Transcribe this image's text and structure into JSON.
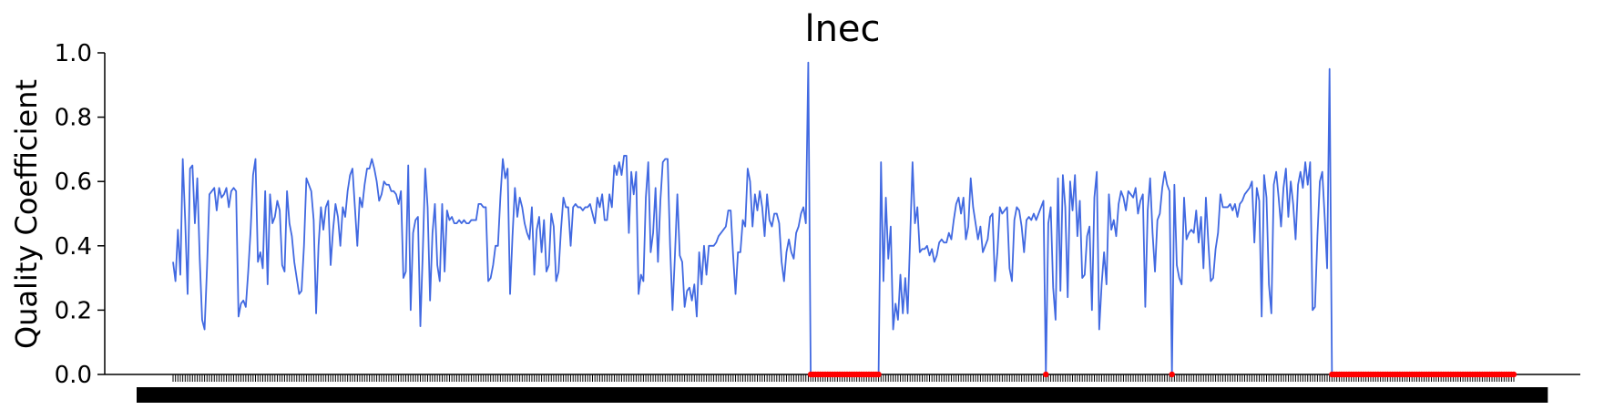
{
  "chart_data": {
    "type": "line",
    "title": "lnec",
    "xlabel": "",
    "ylabel": "Quality Coefficient",
    "ylim": [
      0,
      1.0
    ],
    "yticks": [
      "0.0",
      "0.2",
      "0.4",
      "0.6",
      "0.8",
      "1.0"
    ],
    "x_tick_labels_note": "dense overlapping date tick labels (unreadable)",
    "series": [
      {
        "color": "#4169e1",
        "values": [
          0.35,
          0.29,
          0.45,
          0.31,
          0.67,
          0.48,
          0.25,
          0.64,
          0.65,
          0.47,
          0.61,
          0.36,
          0.17,
          0.14,
          0.33,
          0.56,
          0.57,
          0.58,
          0.51,
          0.58,
          0.55,
          0.56,
          0.58,
          0.52,
          0.57,
          0.58,
          0.57,
          0.18,
          0.22,
          0.23,
          0.21,
          0.32,
          0.45,
          0.62,
          0.67,
          0.35,
          0.38,
          0.33,
          0.57,
          0.28,
          0.56,
          0.47,
          0.49,
          0.54,
          0.51,
          0.34,
          0.32,
          0.57,
          0.47,
          0.43,
          0.35,
          0.3,
          0.25,
          0.26,
          0.4,
          0.61,
          0.59,
          0.57,
          0.48,
          0.19,
          0.4,
          0.52,
          0.45,
          0.52,
          0.54,
          0.34,
          0.45,
          0.53,
          0.49,
          0.4,
          0.52,
          0.49,
          0.57,
          0.62,
          0.64,
          0.52,
          0.4,
          0.55,
          0.52,
          0.59,
          0.64,
          0.64,
          0.67,
          0.64,
          0.6,
          0.54,
          0.56,
          0.6,
          0.59,
          0.59,
          0.57,
          0.57,
          0.56,
          0.53,
          0.57,
          0.3,
          0.32,
          0.65,
          0.2,
          0.44,
          0.48,
          0.49,
          0.15,
          0.38,
          0.64,
          0.52,
          0.23,
          0.44,
          0.53,
          0.34,
          0.29,
          0.53,
          0.32,
          0.51,
          0.48,
          0.49,
          0.47,
          0.47,
          0.48,
          0.47,
          0.48,
          0.47,
          0.47,
          0.48,
          0.48,
          0.48,
          0.53,
          0.53,
          0.52,
          0.52,
          0.29,
          0.3,
          0.34,
          0.4,
          0.4,
          0.55,
          0.67,
          0.61,
          0.64,
          0.25,
          0.43,
          0.58,
          0.49,
          0.55,
          0.52,
          0.47,
          0.44,
          0.42,
          0.52,
          0.31,
          0.45,
          0.49,
          0.38,
          0.48,
          0.32,
          0.34,
          0.5,
          0.46,
          0.29,
          0.32,
          0.45,
          0.55,
          0.52,
          0.52,
          0.4,
          0.52,
          0.53,
          0.52,
          0.52,
          0.51,
          0.52,
          0.52,
          0.53,
          0.5,
          0.47,
          0.55,
          0.52,
          0.56,
          0.48,
          0.48,
          0.56,
          0.52,
          0.65,
          0.62,
          0.66,
          0.62,
          0.68,
          0.68,
          0.44,
          0.63,
          0.56,
          0.63,
          0.25,
          0.31,
          0.29,
          0.55,
          0.66,
          0.38,
          0.44,
          0.58,
          0.35,
          0.54,
          0.66,
          0.67,
          0.67,
          0.4,
          0.2,
          0.37,
          0.56,
          0.37,
          0.35,
          0.21,
          0.26,
          0.27,
          0.23,
          0.28,
          0.18,
          0.38,
          0.28,
          0.4,
          0.31,
          0.4,
          0.4,
          0.4,
          0.41,
          0.43,
          0.44,
          0.45,
          0.46,
          0.51,
          0.51,
          0.37,
          0.25,
          0.38,
          0.38,
          0.48,
          0.46,
          0.64,
          0.6,
          0.46,
          0.56,
          0.51,
          0.57,
          0.52,
          0.43,
          0.56,
          0.48,
          0.46,
          0.5,
          0.5,
          0.47,
          0.35,
          0.29,
          0.38,
          0.42,
          0.38,
          0.36,
          0.44,
          0.46,
          0.5,
          0.52,
          0.47,
          0.97,
          0.0,
          0.0,
          0.0,
          0.0,
          0.0,
          0.0,
          0.0,
          0.0,
          0.0,
          0.0,
          0.0,
          0.0,
          0.0,
          0.0,
          0.0,
          0.0,
          0.0,
          0.0,
          0.0,
          0.0,
          0.0,
          0.0,
          0.0,
          0.0,
          0.0,
          0.0,
          0.0,
          0.0,
          0.0,
          0.66,
          0.29,
          0.55,
          0.36,
          0.46,
          0.14,
          0.22,
          0.17,
          0.31,
          0.19,
          0.3,
          0.19,
          0.42,
          0.66,
          0.47,
          0.52,
          0.38,
          0.39,
          0.39,
          0.4,
          0.37,
          0.39,
          0.35,
          0.37,
          0.41,
          0.42,
          0.41,
          0.41,
          0.44,
          0.42,
          0.48,
          0.53,
          0.55,
          0.5,
          0.55,
          0.42,
          0.46,
          0.61,
          0.52,
          0.47,
          0.42,
          0.46,
          0.38,
          0.4,
          0.42,
          0.49,
          0.5,
          0.29,
          0.38,
          0.52,
          0.5,
          0.51,
          0.52,
          0.33,
          0.29,
          0.48,
          0.52,
          0.51,
          0.46,
          0.38,
          0.48,
          0.49,
          0.48,
          0.5,
          0.48,
          0.5,
          0.52,
          0.54,
          0.0,
          0.47,
          0.52,
          0.27,
          0.17,
          0.61,
          0.26,
          0.62,
          0.52,
          0.24,
          0.6,
          0.51,
          0.62,
          0.43,
          0.54,
          0.3,
          0.31,
          0.43,
          0.46,
          0.2,
          0.55,
          0.63,
          0.14,
          0.28,
          0.38,
          0.28,
          0.56,
          0.45,
          0.48,
          0.43,
          0.53,
          0.57,
          0.55,
          0.51,
          0.57,
          0.56,
          0.55,
          0.58,
          0.5,
          0.54,
          0.56,
          0.21,
          0.51,
          0.61,
          0.44,
          0.32,
          0.48,
          0.5,
          0.58,
          0.63,
          0.59,
          0.57,
          0.0,
          0.59,
          0.34,
          0.3,
          0.28,
          0.55,
          0.42,
          0.44,
          0.45,
          0.44,
          0.51,
          0.41,
          0.49,
          0.33,
          0.55,
          0.41,
          0.29,
          0.3,
          0.39,
          0.44,
          0.56,
          0.52,
          0.52,
          0.52,
          0.53,
          0.51,
          0.53,
          0.49,
          0.53,
          0.54,
          0.56,
          0.57,
          0.58,
          0.6,
          0.41,
          0.58,
          0.54,
          0.18,
          0.62,
          0.55,
          0.28,
          0.19,
          0.59,
          0.63,
          0.55,
          0.46,
          0.58,
          0.64,
          0.49,
          0.6,
          0.53,
          0.42,
          0.59,
          0.63,
          0.58,
          0.66,
          0.59,
          0.66,
          0.2,
          0.21,
          0.43,
          0.6,
          0.63,
          0.49,
          0.33,
          0.95,
          0.0,
          0.0,
          0.0,
          0.0,
          0.0,
          0.0,
          0.0,
          0.0,
          0.0,
          0.0,
          0.0,
          0.0,
          0.0,
          0.0,
          0.0,
          0.0,
          0.0,
          0.0,
          0.0,
          0.0,
          0.0,
          0.0,
          0.0,
          0.0,
          0.0,
          0.0,
          0.0,
          0.0,
          0.0,
          0.0,
          0.0,
          0.0,
          0.0,
          0.0,
          0.0,
          0.0,
          0.0,
          0.0,
          0.0,
          0.0,
          0.0,
          0.0,
          0.0,
          0.0,
          0.0,
          0.0,
          0.0,
          0.0,
          0.0,
          0.0,
          0.0,
          0.0,
          0.0,
          0.0,
          0.0,
          0.0,
          0.0,
          0.0,
          0.0,
          0.0,
          0.0,
          0.0,
          0.0,
          0.0,
          0.0,
          0.0,
          0.0,
          0.0,
          0.0,
          0.0,
          0.0,
          0.0,
          0.0,
          0.0,
          0.0,
          0.0
        ]
      }
    ],
    "zero_marker_color": "#ff0000",
    "grid": false,
    "legend": "none"
  }
}
